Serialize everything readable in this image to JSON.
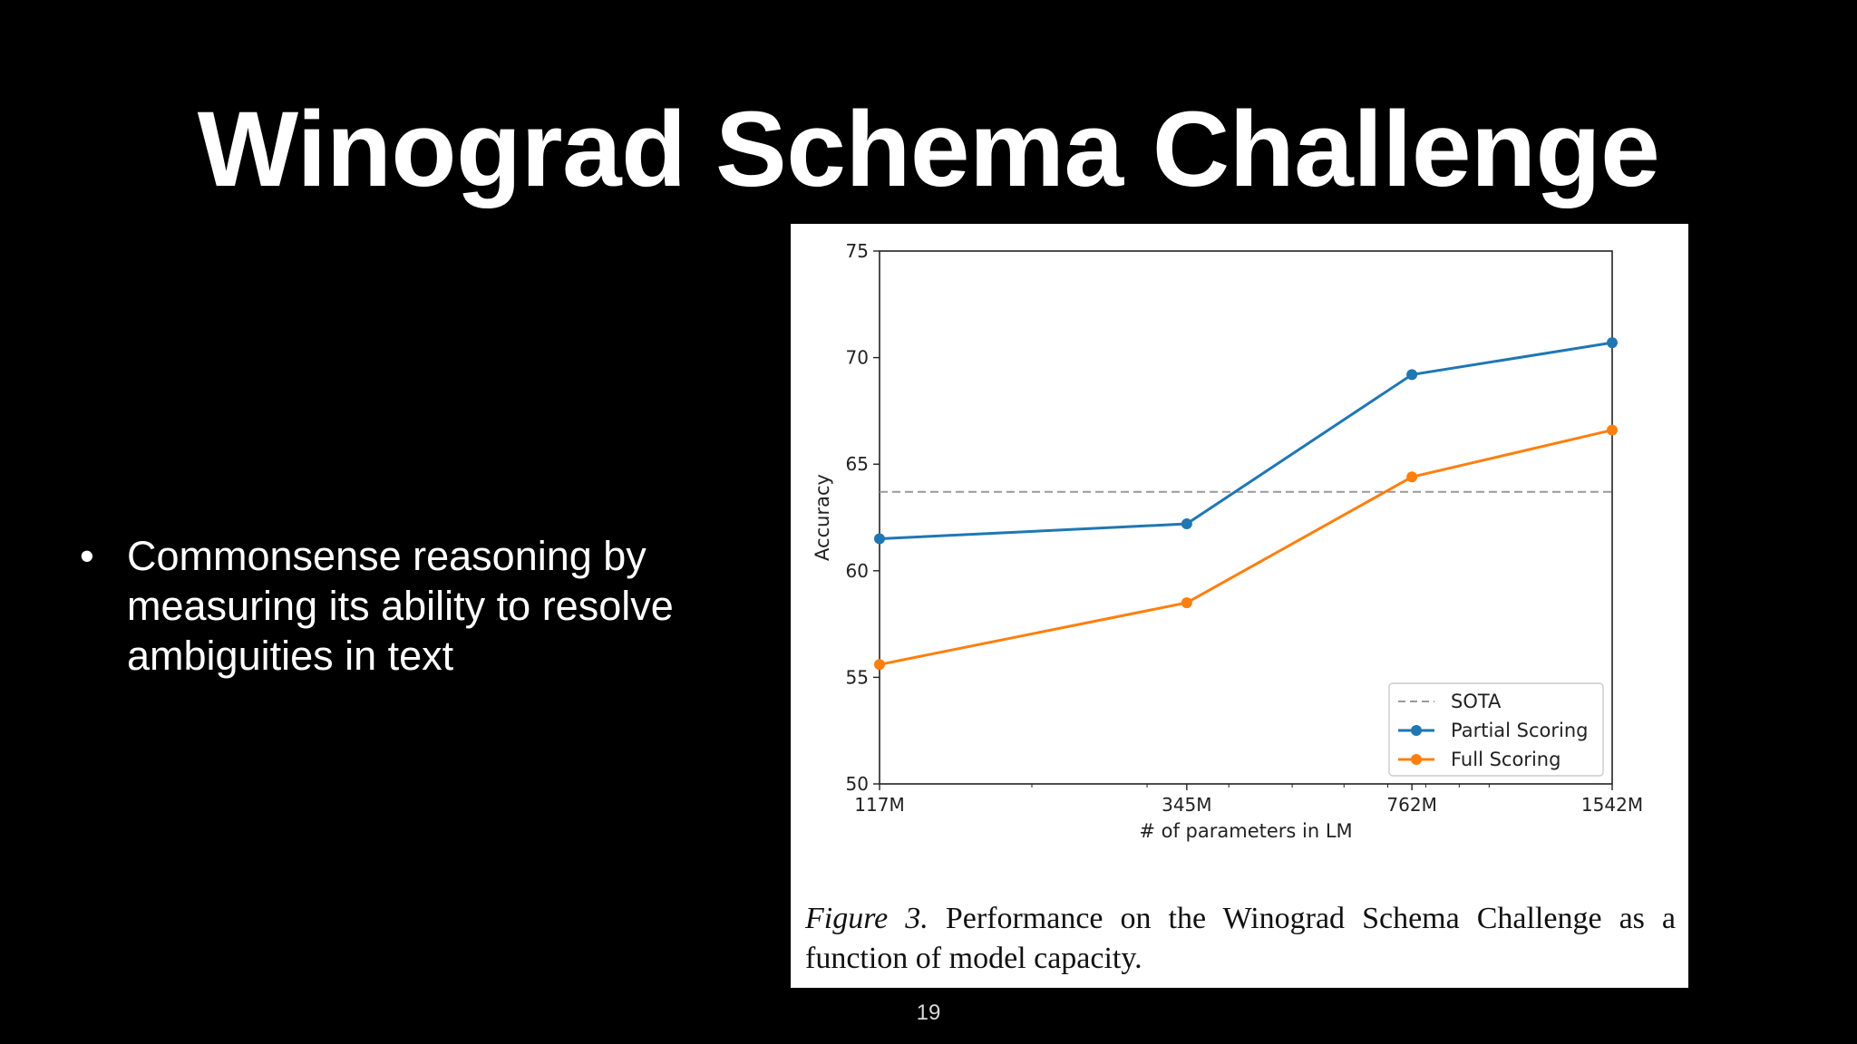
{
  "slide": {
    "title": "Winograd Schema Challenge",
    "bullets": [
      "Commonsense reasoning by measuring its ability to resolve ambiguities in text"
    ],
    "bullet_glyph": "•",
    "page_number": "19"
  },
  "caption": {
    "label": "Figure 3.",
    "text": "Performance on the Winograd Schema Challenge as a function of model capacity."
  },
  "chart_data": {
    "type": "line",
    "title": "",
    "xlabel": "# of parameters in LM",
    "ylabel": "Accuracy",
    "x_scale": "log",
    "x": [
      117,
      345,
      762,
      1542
    ],
    "x_tick_labels": [
      "117M",
      "345M",
      "762M",
      "1542M"
    ],
    "ylim": [
      50,
      75
    ],
    "y_ticks": [
      50,
      55,
      60,
      65,
      70,
      75
    ],
    "grid": false,
    "legend_position": "lower-right",
    "series": [
      {
        "name": "Partial Scoring",
        "values": [
          61.5,
          62.2,
          69.2,
          70.7
        ],
        "color": "#1f77b4",
        "marker": "circle"
      },
      {
        "name": "Full Scoring",
        "values": [
          55.6,
          58.5,
          64.4,
          66.6
        ],
        "color": "#ff7f0e",
        "marker": "circle"
      }
    ],
    "reference_lines": [
      {
        "name": "SOTA",
        "value": 63.7,
        "color": "#999999",
        "style": "dashed"
      }
    ]
  }
}
